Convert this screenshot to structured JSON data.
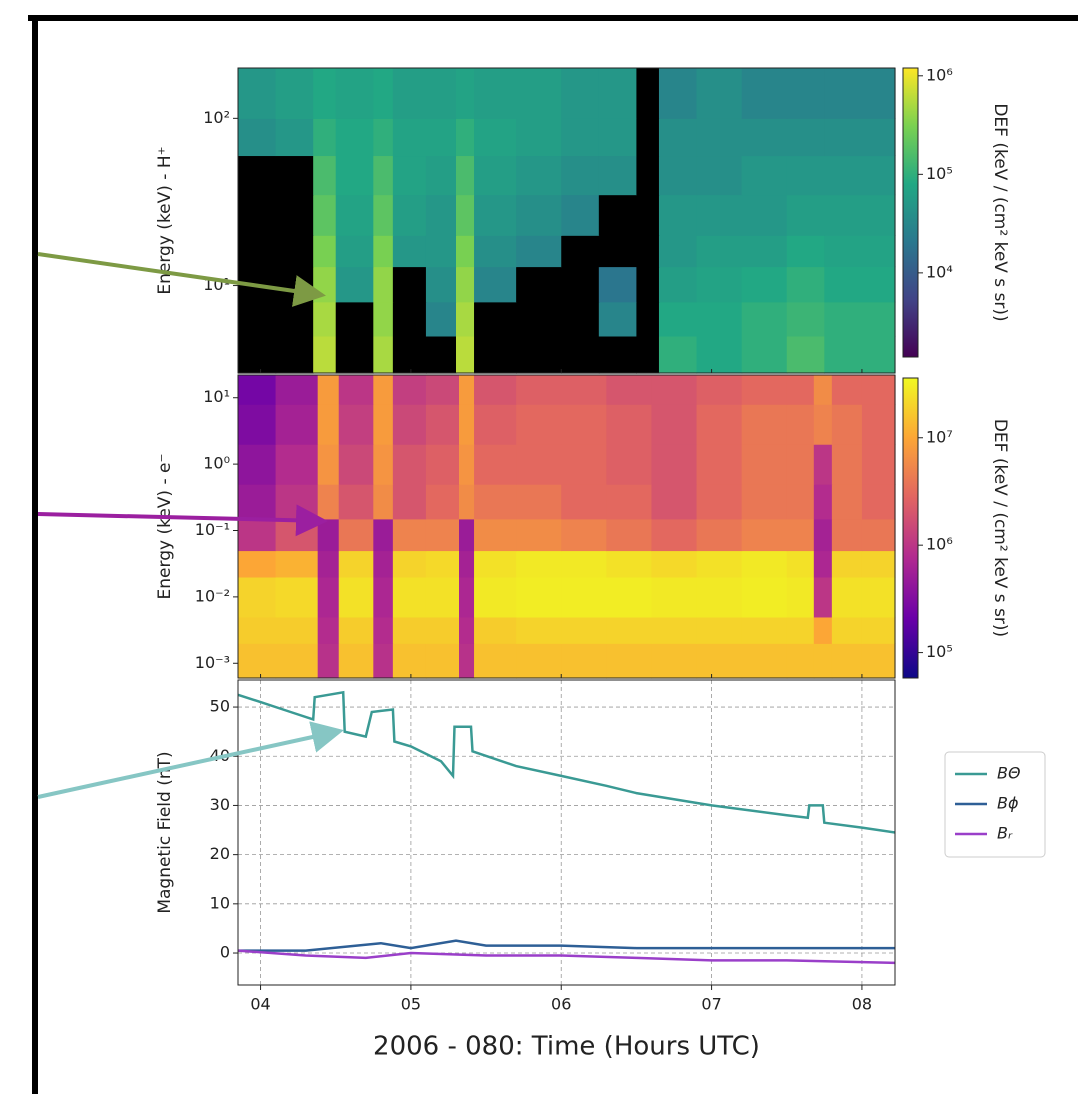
{
  "chart_data": [
    {
      "type": "heatmap",
      "ylabel": "Energy (keV) - H⁺",
      "log_y": true,
      "colormap": "viridis",
      "xbins": [
        3.85,
        4.1,
        4.35,
        4.5,
        4.75,
        4.88,
        5.1,
        5.3,
        5.42,
        5.7,
        6.0,
        6.25,
        6.5,
        6.65,
        6.9,
        7.2,
        7.5,
        7.75,
        8.22
      ],
      "ybins": [
        3,
        5,
        8,
        13,
        20,
        35,
        60,
        100,
        200
      ],
      "z": [
        [
          null,
          null,
          600000.0,
          null,
          500000.0,
          null,
          null,
          600000.0,
          null,
          null,
          null,
          null,
          null,
          100000.0,
          80000.0,
          100000.0,
          150000.0,
          100000.0
        ],
        [
          null,
          null,
          500000.0,
          null,
          400000.0,
          null,
          30000.0,
          500000.0,
          null,
          null,
          null,
          30000.0,
          null,
          80000.0,
          80000.0,
          100000.0,
          120000.0,
          100000.0
        ],
        [
          null,
          null,
          400000.0,
          50000.0,
          400000.0,
          null,
          40000.0,
          400000.0,
          30000.0,
          null,
          null,
          20000.0,
          null,
          60000.0,
          70000.0,
          80000.0,
          100000.0,
          80000.0
        ],
        [
          null,
          null,
          300000.0,
          60000.0,
          300000.0,
          50000.0,
          50000.0,
          300000.0,
          40000.0,
          30000.0,
          null,
          null,
          null,
          50000.0,
          60000.0,
          60000.0,
          80000.0,
          70000.0
        ],
        [
          null,
          null,
          200000.0,
          70000.0,
          200000.0,
          60000.0,
          50000.0,
          200000.0,
          50000.0,
          40000.0,
          30000.0,
          null,
          null,
          50000.0,
          50000.0,
          50000.0,
          60000.0,
          60000.0
        ],
        [
          null,
          null,
          150000.0,
          80000.0,
          150000.0,
          70000.0,
          60000.0,
          150000.0,
          60000.0,
          50000.0,
          40000.0,
          40000.0,
          null,
          40000.0,
          40000.0,
          50000.0,
          50000.0,
          50000.0
        ],
        [
          40000.0,
          50000.0,
          100000.0,
          80000.0,
          100000.0,
          70000.0,
          70000.0,
          100000.0,
          70000.0,
          60000.0,
          50000.0,
          50000.0,
          null,
          40000.0,
          40000.0,
          40000.0,
          40000.0,
          40000.0
        ],
        [
          50000.0,
          60000.0,
          80000.0,
          70000.0,
          80000.0,
          60000.0,
          60000.0,
          70000.0,
          60000.0,
          60000.0,
          50000.0,
          50000.0,
          null,
          30000.0,
          40000.0,
          30000.0,
          30000.0,
          30000.0
        ]
      ],
      "ylim": [
        3,
        200
      ],
      "yticks": [
        {
          "value": 10,
          "label": "10¹"
        },
        {
          "value": 100,
          "label": "10²"
        }
      ],
      "colorbar": {
        "label": "DEF (keV / (cm² keV s sr))",
        "lim": [
          1400,
          1200000
        ],
        "log": true,
        "ticks": [
          {
            "value": 10000,
            "label": "10⁴"
          },
          {
            "value": 100000,
            "label": "10⁵"
          },
          {
            "value": 1000000,
            "label": "10⁶"
          }
        ]
      }
    },
    {
      "type": "heatmap",
      "ylabel": "Energy (keV) - e⁻",
      "log_y": true,
      "colormap": "plasma",
      "xbins": [
        3.85,
        4.1,
        4.38,
        4.52,
        4.75,
        4.88,
        5.1,
        5.32,
        5.42,
        5.7,
        6.0,
        6.3,
        6.6,
        6.9,
        7.2,
        7.5,
        7.68,
        7.8,
        8.0,
        8.22
      ],
      "ybins": [
        0.0006,
        0.002,
        0.005,
        0.02,
        0.05,
        0.15,
        0.5,
        2,
        8,
        22
      ],
      "z": [
        [
          15000000.0,
          15000000.0,
          900000.0,
          15000000.0,
          900000.0,
          15000000.0,
          15000000.0,
          900000.0,
          15000000.0,
          15000000.0,
          15000000.0,
          15000000.0,
          15000000.0,
          15000000.0,
          15000000.0,
          15000000.0,
          15000000.0,
          15000000.0,
          15000000.0
        ],
        [
          18000000.0,
          18000000.0,
          800000.0,
          18000000.0,
          800000.0,
          18000000.0,
          18000000.0,
          800000.0,
          18000000.0,
          20000000.0,
          20000000.0,
          20000000.0,
          20000000.0,
          20000000.0,
          20000000.0,
          20000000.0,
          10000000.0,
          20000000.0,
          20000000.0
        ],
        [
          20000000.0,
          22000000.0,
          700000.0,
          25000000.0,
          700000.0,
          25000000.0,
          25000000.0,
          700000.0,
          28000000.0,
          30000000.0,
          30000000.0,
          30000000.0,
          28000000.0,
          28000000.0,
          30000000.0,
          28000000.0,
          1000000.0,
          25000000.0,
          25000000.0
        ],
        [
          10000000.0,
          12000000.0,
          600000.0,
          20000000.0,
          600000.0,
          20000000.0,
          22000000.0,
          600000.0,
          25000000.0,
          28000000.0,
          28000000.0,
          25000000.0,
          22000000.0,
          25000000.0,
          28000000.0,
          25000000.0,
          700000.0,
          20000000.0,
          20000000.0
        ],
        [
          1000000.0,
          2000000.0,
          500000.0,
          4000000.0,
          500000.0,
          5000000.0,
          5000000.0,
          500000.0,
          6000000.0,
          6000000.0,
          5000000.0,
          4000000.0,
          3000000.0,
          4000000.0,
          5000000.0,
          5000000.0,
          600000.0,
          4000000.0,
          4000000.0
        ],
        [
          500000.0,
          1000000.0,
          5000000.0,
          2000000.0,
          6000000.0,
          2000000.0,
          3000000.0,
          6000000.0,
          4000000.0,
          4000000.0,
          3000000.0,
          3000000.0,
          2000000.0,
          3000000.0,
          4000000.0,
          4000000.0,
          800000.0,
          4000000.0,
          3000000.0
        ],
        [
          400000.0,
          800000.0,
          7000000.0,
          1500000.0,
          7000000.0,
          2000000.0,
          2500000.0,
          7000000.0,
          3000000.0,
          3000000.0,
          3000000.0,
          2500000.0,
          2000000.0,
          3000000.0,
          4000000.0,
          4000000.0,
          1000000.0,
          4000000.0,
          3000000.0
        ],
        [
          300000.0,
          600000.0,
          8000000.0,
          1200000.0,
          8000000.0,
          1500000.0,
          2000000.0,
          8000000.0,
          2500000.0,
          3000000.0,
          3000000.0,
          2500000.0,
          2000000.0,
          3000000.0,
          4000000.0,
          4000000.0,
          5000000.0,
          4000000.0,
          3000000.0
        ],
        [
          250000.0,
          500000.0,
          8000000.0,
          1000000.0,
          8000000.0,
          1200000.0,
          1500000.0,
          8000000.0,
          2000000.0,
          2500000.0,
          2500000.0,
          2000000.0,
          2000000.0,
          2500000.0,
          3000000.0,
          3000000.0,
          6000000.0,
          3000000.0,
          3000000.0
        ]
      ],
      "ylim": [
        0.0006,
        22
      ],
      "yticks": [
        {
          "value": 0.001,
          "label": "10⁻³"
        },
        {
          "value": 0.01,
          "label": "10⁻²"
        },
        {
          "value": 0.1,
          "label": "10⁻¹"
        },
        {
          "value": 1,
          "label": "10⁰"
        },
        {
          "value": 10,
          "label": "10¹"
        }
      ],
      "colorbar": {
        "label": "DEF (keV / (cm² keV s sr))",
        "lim": [
          58000,
          36000000
        ],
        "log": true,
        "ticks": [
          {
            "value": 100000,
            "label": "10⁵"
          },
          {
            "value": 1000000,
            "label": "10⁶"
          },
          {
            "value": 10000000,
            "label": "10⁷"
          }
        ]
      }
    },
    {
      "type": "line",
      "ylabel": "Magnetic Field (nT)",
      "xlabel": "2006 - 080: Time (Hours UTC)",
      "grid": true,
      "legend": "outside-right",
      "xlim": [
        3.85,
        8.22
      ],
      "ylim": [
        -6.5,
        55.5
      ],
      "xticks": [
        {
          "value": 4,
          "label": "04"
        },
        {
          "value": 5,
          "label": "05"
        },
        {
          "value": 6,
          "label": "06"
        },
        {
          "value": 7,
          "label": "07"
        },
        {
          "value": 8,
          "label": "08"
        }
      ],
      "yticks": [
        0,
        10,
        20,
        30,
        40,
        50
      ],
      "series": [
        {
          "name": "BΘ",
          "color": "#3a9a94",
          "x": [
            3.85,
            4.0,
            4.2,
            4.35,
            4.36,
            4.55,
            4.56,
            4.7,
            4.74,
            4.88,
            4.89,
            5.0,
            5.2,
            5.28,
            5.29,
            5.4,
            5.41,
            5.7,
            6.0,
            6.3,
            6.5,
            7.0,
            7.5,
            7.64,
            7.65,
            7.74,
            7.75,
            8.0,
            8.22
          ],
          "values": [
            52.5,
            51,
            49,
            47.5,
            52,
            53,
            45,
            44,
            49,
            49.5,
            43,
            42,
            39,
            36,
            46,
            46,
            41,
            38,
            36,
            34,
            32.5,
            30,
            28,
            27.5,
            30,
            30,
            26.5,
            25.5,
            24.5
          ]
        },
        {
          "name": "Bϕ",
          "color": "#2e5f96",
          "x": [
            3.85,
            4.3,
            4.8,
            5.0,
            5.3,
            5.5,
            6.0,
            6.5,
            7.0,
            7.5,
            8.22
          ],
          "values": [
            0.5,
            0.5,
            2,
            1,
            2.5,
            1.5,
            1.5,
            1,
            1,
            1,
            1
          ]
        },
        {
          "name": "Bᵣ",
          "color": "#9a3fc9",
          "x": [
            3.85,
            4.3,
            4.7,
            5.0,
            5.5,
            6.0,
            6.5,
            7.0,
            7.5,
            8.22
          ],
          "values": [
            0.5,
            -0.5,
            -1,
            0,
            -0.5,
            -0.5,
            -1,
            -1.5,
            -1.5,
            -2
          ]
        }
      ]
    }
  ]
}
